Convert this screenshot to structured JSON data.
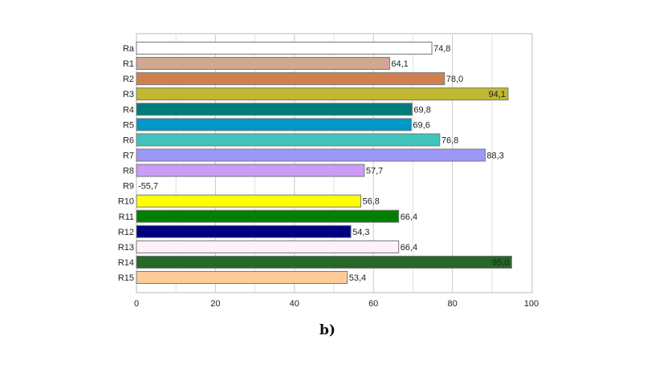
{
  "chart_data": {
    "type": "bar",
    "orientation": "horizontal",
    "title": "",
    "xlabel": "",
    "ylabel": "",
    "xlim": [
      0,
      100
    ],
    "x_ticks": [
      "0",
      "20",
      "40",
      "60",
      "80",
      "100"
    ],
    "grid": true,
    "categories": [
      "Ra",
      "R1",
      "R2",
      "R3",
      "R4",
      "R5",
      "R6",
      "R7",
      "R8",
      "R9",
      "R10",
      "R11",
      "R12",
      "R13",
      "R14",
      "R15"
    ],
    "values": [
      74.8,
      64.1,
      78.0,
      94.1,
      69.8,
      69.6,
      76.8,
      88.3,
      57.7,
      -55.7,
      56.8,
      66.4,
      54.3,
      66.4,
      95.0,
      53.4
    ],
    "value_labels": [
      "74,8",
      "64,1",
      "78,0",
      "94,1",
      "69,8",
      "69,6",
      "76,8",
      "88,3",
      "57,7",
      "-55,7",
      "56,8",
      "66,4",
      "54,3",
      "66,4",
      "95,0",
      "53,4"
    ],
    "colors": [
      "#ffffff",
      "#d0a890",
      "#d08050",
      "#c0b830",
      "#007c7c",
      "#0098c8",
      "#40c4bc",
      "#9c98f8",
      "#cc9cf8",
      "#ffffff",
      "#ffff00",
      "#008000",
      "#000080",
      "#fff0fc",
      "#266826",
      "#ffcc99"
    ],
    "inside_label": [
      false,
      false,
      false,
      true,
      false,
      false,
      false,
      false,
      false,
      false,
      false,
      false,
      false,
      false,
      true,
      false
    ]
  },
  "caption": "b)"
}
